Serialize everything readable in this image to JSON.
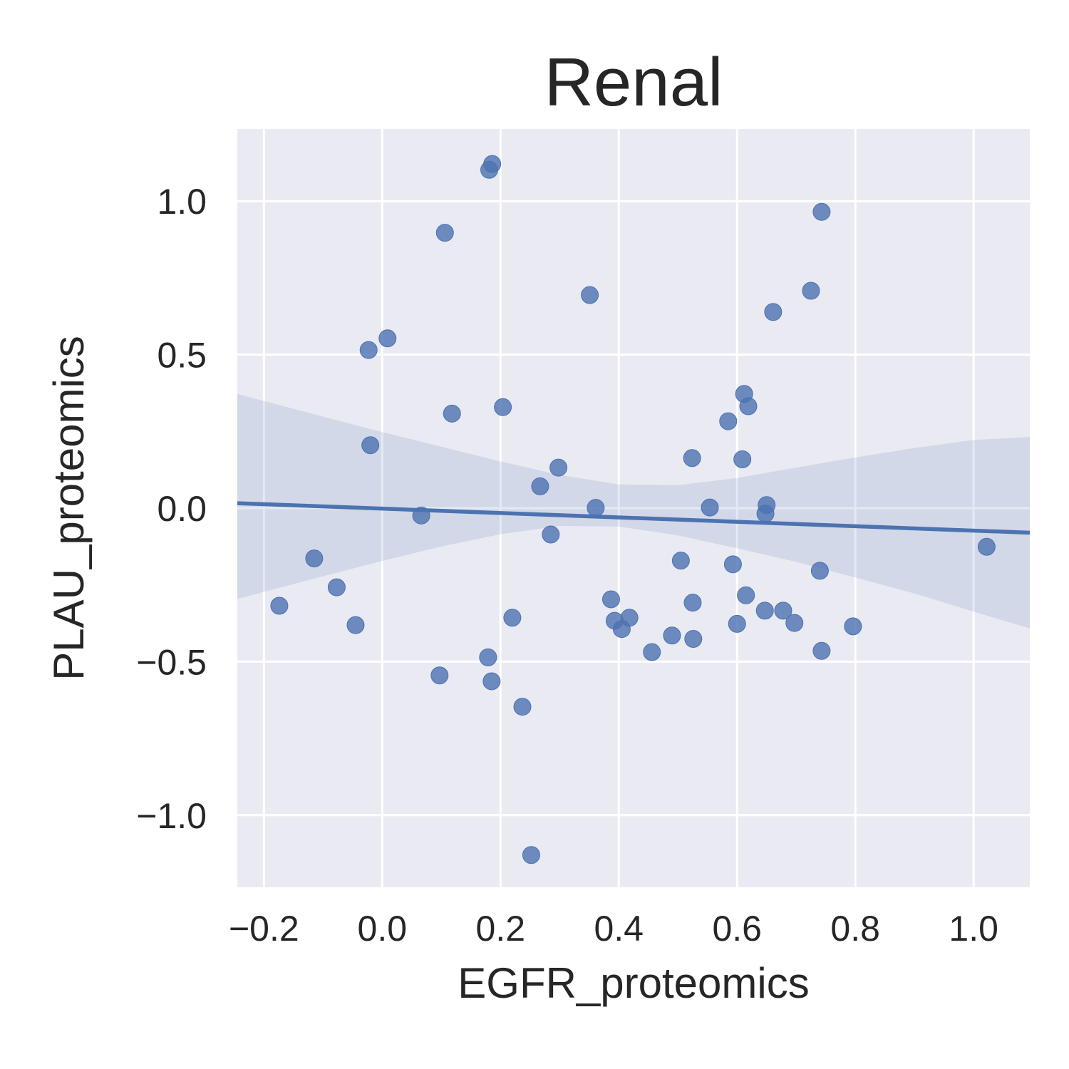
{
  "chart_data": {
    "type": "scatter",
    "title": "Renal",
    "xlabel": "EGFR_proteomics",
    "ylabel": "PLAU_proteomics",
    "xlim": [
      -0.245,
      1.095
    ],
    "ylim": [
      -1.235,
      1.235
    ],
    "xticks": [
      -0.2,
      0.0,
      0.2,
      0.4,
      0.6,
      0.8,
      1.0
    ],
    "xtick_labels": [
      "−0.2",
      "0.0",
      "0.2",
      "0.4",
      "0.6",
      "0.8",
      "1.0"
    ],
    "yticks": [
      -1.0,
      -0.5,
      0.0,
      0.5,
      1.0
    ],
    "ytick_labels": [
      "−1.0",
      "−0.5",
      "0.0",
      "0.5",
      "1.0"
    ],
    "grid": true,
    "background": "#eaeaf2",
    "point_color": "#4c72b0",
    "points": [
      {
        "x": -0.174,
        "y": -0.318
      },
      {
        "x": -0.115,
        "y": -0.164
      },
      {
        "x": -0.077,
        "y": -0.258
      },
      {
        "x": -0.045,
        "y": -0.381
      },
      {
        "x": -0.023,
        "y": 0.515
      },
      {
        "x": -0.02,
        "y": 0.205
      },
      {
        "x": 0.009,
        "y": 0.553
      },
      {
        "x": 0.066,
        "y": -0.024
      },
      {
        "x": 0.097,
        "y": -0.545
      },
      {
        "x": 0.106,
        "y": 0.897
      },
      {
        "x": 0.118,
        "y": 0.308
      },
      {
        "x": 0.179,
        "y": -0.486
      },
      {
        "x": 0.181,
        "y": 1.102
      },
      {
        "x": 0.186,
        "y": 1.121
      },
      {
        "x": 0.185,
        "y": -0.564
      },
      {
        "x": 0.204,
        "y": 0.329
      },
      {
        "x": 0.22,
        "y": -0.357
      },
      {
        "x": 0.237,
        "y": -0.647
      },
      {
        "x": 0.252,
        "y": -1.13
      },
      {
        "x": 0.267,
        "y": 0.071
      },
      {
        "x": 0.285,
        "y": -0.086
      },
      {
        "x": 0.298,
        "y": 0.132
      },
      {
        "x": 0.351,
        "y": 0.694
      },
      {
        "x": 0.361,
        "y": 0.001
      },
      {
        "x": 0.387,
        "y": -0.297
      },
      {
        "x": 0.393,
        "y": -0.367
      },
      {
        "x": 0.405,
        "y": -0.394
      },
      {
        "x": 0.418,
        "y": -0.357
      },
      {
        "x": 0.456,
        "y": -0.469
      },
      {
        "x": 0.49,
        "y": -0.415
      },
      {
        "x": 0.505,
        "y": -0.171
      },
      {
        "x": 0.524,
        "y": 0.163
      },
      {
        "x": 0.525,
        "y": -0.308
      },
      {
        "x": 0.526,
        "y": -0.426
      },
      {
        "x": 0.554,
        "y": 0.002
      },
      {
        "x": 0.585,
        "y": 0.283
      },
      {
        "x": 0.593,
        "y": -0.183
      },
      {
        "x": 0.6,
        "y": -0.377
      },
      {
        "x": 0.609,
        "y": 0.159
      },
      {
        "x": 0.612,
        "y": 0.372
      },
      {
        "x": 0.615,
        "y": -0.284
      },
      {
        "x": 0.619,
        "y": 0.332
      },
      {
        "x": 0.647,
        "y": -0.334
      },
      {
        "x": 0.648,
        "y": -0.018
      },
      {
        "x": 0.65,
        "y": 0.01
      },
      {
        "x": 0.661,
        "y": 0.639
      },
      {
        "x": 0.678,
        "y": -0.334
      },
      {
        "x": 0.697,
        "y": -0.374
      },
      {
        "x": 0.725,
        "y": 0.708
      },
      {
        "x": 0.74,
        "y": -0.204
      },
      {
        "x": 0.743,
        "y": 0.965
      },
      {
        "x": 0.743,
        "y": -0.465
      },
      {
        "x": 0.796,
        "y": -0.385
      },
      {
        "x": 1.022,
        "y": -0.126
      }
    ],
    "regression": {
      "x": [
        -0.245,
        1.095
      ],
      "y": [
        0.016,
        -0.08
      ]
    },
    "confidence_band": {
      "x": [
        -0.245,
        -0.1,
        0.0,
        0.1,
        0.2,
        0.3,
        0.4,
        0.5,
        0.6,
        0.7,
        0.8,
        0.9,
        1.0,
        1.095
      ],
      "upper": [
        0.372,
        0.298,
        0.248,
        0.2,
        0.152,
        0.108,
        0.077,
        0.075,
        0.098,
        0.132,
        0.165,
        0.196,
        0.222,
        0.232
      ],
      "lower": [
        -0.296,
        -0.222,
        -0.172,
        -0.125,
        -0.085,
        -0.058,
        -0.06,
        -0.089,
        -0.131,
        -0.175,
        -0.226,
        -0.278,
        -0.337,
        -0.392
      ]
    }
  }
}
